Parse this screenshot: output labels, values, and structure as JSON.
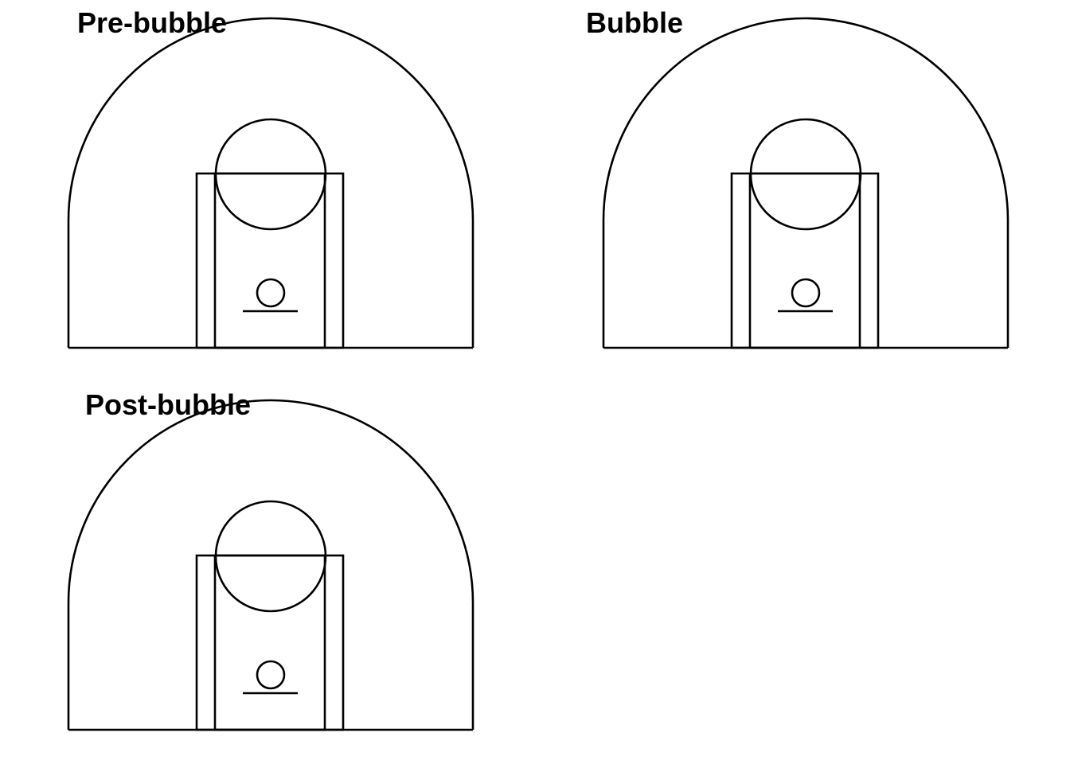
{
  "panels": [
    {
      "title": "Pre-bubble"
    },
    {
      "title": "Bubble"
    },
    {
      "title": "Post-bubble"
    }
  ],
  "colors": {
    "background": "#ffffff",
    "line": "#000000",
    "text": "#000000"
  }
}
